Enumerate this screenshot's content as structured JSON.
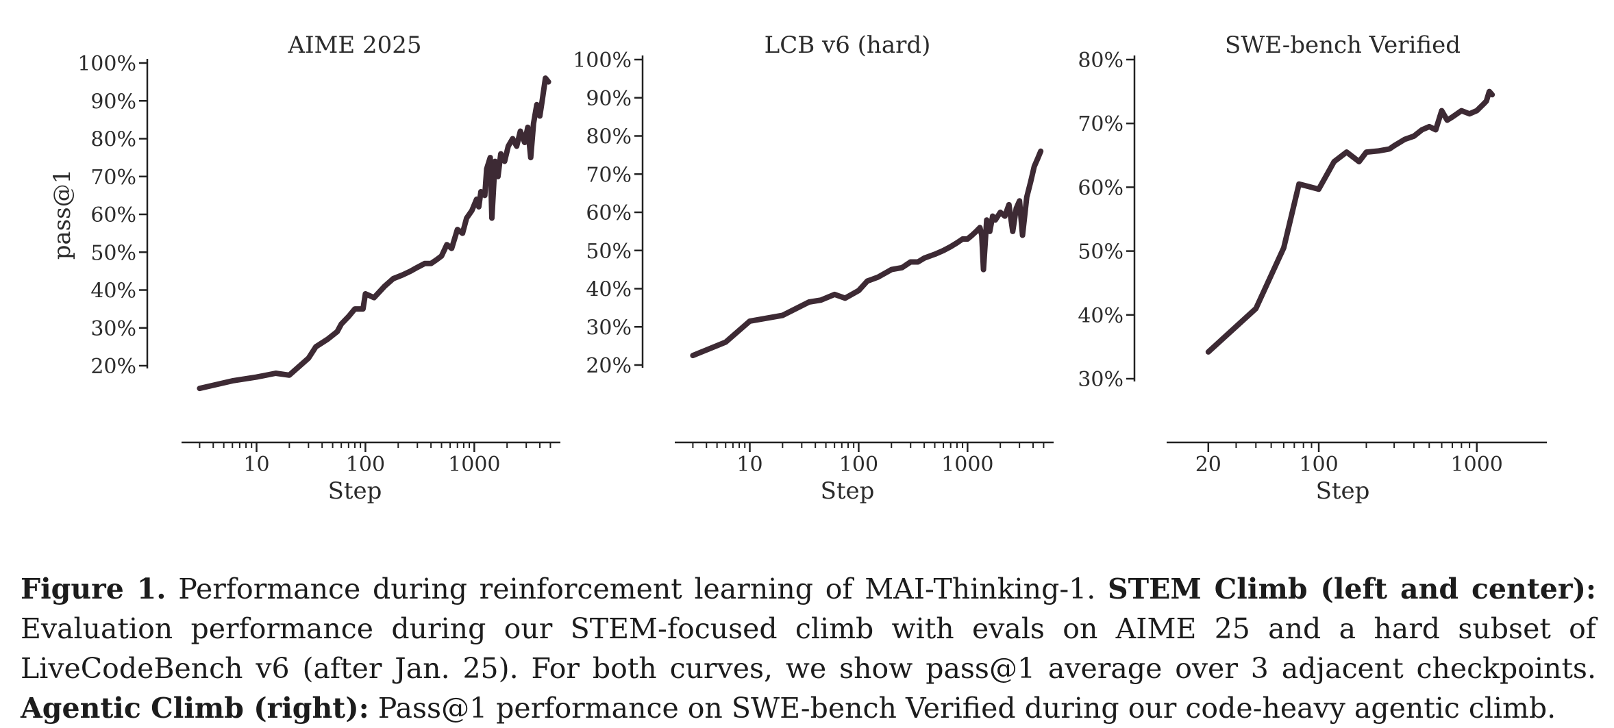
{
  "colors": {
    "line": "#3d2a34",
    "axis": "#222222",
    "text": "#2b2b2b"
  },
  "chart_data": [
    {
      "type": "line",
      "title": "AIME 2025",
      "xlabel": "Step",
      "ylabel": "pass@1",
      "xscale": "log",
      "xlim": [
        2.2,
        5500
      ],
      "ylim": [
        0.115,
        1.0
      ],
      "xticks": [
        10,
        100,
        1000
      ],
      "xtick_labels": [
        "10",
        "100",
        "1000"
      ],
      "yticks": [
        0.2,
        0.3,
        0.4,
        0.5,
        0.6,
        0.7,
        0.8,
        0.9,
        1.0
      ],
      "ytick_labels": [
        "20%",
        "30%",
        "40%",
        "50%",
        "60%",
        "70%",
        "80%",
        "90%",
        "100%"
      ],
      "grid": false,
      "x": [
        3,
        6,
        10,
        15,
        20,
        30,
        35,
        45,
        55,
        60,
        70,
        80,
        95,
        100,
        120,
        150,
        180,
        220,
        260,
        300,
        350,
        400,
        450,
        500,
        560,
        620,
        700,
        780,
        850,
        950,
        1050,
        1100,
        1150,
        1250,
        1300,
        1400,
        1450,
        1550,
        1650,
        1750,
        1900,
        2050,
        2250,
        2450,
        2650,
        2900,
        3100,
        3300,
        3500,
        3750,
        4000,
        4200,
        4500,
        4800
      ],
      "series": [
        {
          "values": [
            0.14,
            0.16,
            0.17,
            0.18,
            0.175,
            0.22,
            0.25,
            0.27,
            0.29,
            0.31,
            0.33,
            0.35,
            0.35,
            0.39,
            0.38,
            0.41,
            0.43,
            0.44,
            0.45,
            0.46,
            0.47,
            0.47,
            0.48,
            0.49,
            0.52,
            0.51,
            0.56,
            0.55,
            0.59,
            0.61,
            0.64,
            0.62,
            0.66,
            0.65,
            0.72,
            0.75,
            0.59,
            0.74,
            0.7,
            0.76,
            0.74,
            0.78,
            0.8,
            0.78,
            0.82,
            0.79,
            0.83,
            0.75,
            0.84,
            0.89,
            0.86,
            0.9,
            0.96,
            0.95
          ]
        }
      ]
    },
    {
      "type": "line",
      "title": "LCB v6 (hard)",
      "xlabel": "Step",
      "ylabel": "",
      "xscale": "log",
      "xlim": [
        2.2,
        5500
      ],
      "ylim": [
        0.2,
        1.0
      ],
      "xticks": [
        10,
        100,
        1000
      ],
      "xtick_labels": [
        "10",
        "100",
        "1000"
      ],
      "yticks": [
        0.2,
        0.3,
        0.4,
        0.5,
        0.6,
        0.7,
        0.8,
        0.9,
        1.0
      ],
      "ytick_labels": [
        "20%",
        "30%",
        "40%",
        "50%",
        "60%",
        "70%",
        "80%",
        "90%",
        "100%"
      ],
      "grid": false,
      "x": [
        3,
        6,
        10,
        20,
        35,
        45,
        60,
        75,
        100,
        120,
        150,
        200,
        250,
        300,
        350,
        400,
        500,
        600,
        700,
        800,
        900,
        1000,
        1100,
        1200,
        1300,
        1350,
        1400,
        1500,
        1600,
        1700,
        1800,
        2000,
        2200,
        2400,
        2600,
        2800,
        3000,
        3200,
        3500,
        3800,
        4100,
        4400,
        4700
      ],
      "series": [
        {
          "values": [
            0.225,
            0.26,
            0.315,
            0.33,
            0.365,
            0.37,
            0.385,
            0.375,
            0.395,
            0.42,
            0.43,
            0.45,
            0.455,
            0.47,
            0.47,
            0.48,
            0.49,
            0.5,
            0.51,
            0.52,
            0.53,
            0.53,
            0.54,
            0.55,
            0.56,
            0.54,
            0.45,
            0.58,
            0.55,
            0.59,
            0.58,
            0.6,
            0.59,
            0.62,
            0.55,
            0.61,
            0.63,
            0.54,
            0.64,
            0.68,
            0.72,
            0.74,
            0.76
          ]
        }
      ]
    },
    {
      "type": "line",
      "title": "SWE-bench Verified",
      "xlabel": "Step",
      "ylabel": "",
      "xscale": "log",
      "xlim": [
        15,
        1900
      ],
      "ylim": [
        0.27,
        0.8
      ],
      "xticks": [
        20,
        100,
        1000
      ],
      "xtick_labels": [
        "20",
        "100",
        "1000"
      ],
      "yticks": [
        0.3,
        0.4,
        0.5,
        0.6,
        0.7,
        0.8
      ],
      "ytick_labels": [
        "30%",
        "40%",
        "50%",
        "60%",
        "70%",
        "80%"
      ],
      "grid": false,
      "x": [
        20,
        40,
        60,
        75,
        100,
        125,
        150,
        180,
        200,
        240,
        280,
        300,
        350,
        400,
        450,
        500,
        550,
        600,
        650,
        700,
        800,
        900,
        1000,
        1100,
        1150,
        1200,
        1250
      ],
      "series": [
        {
          "values": [
            0.342,
            0.41,
            0.505,
            0.605,
            0.597,
            0.64,
            0.655,
            0.64,
            0.655,
            0.657,
            0.66,
            0.665,
            0.675,
            0.68,
            0.69,
            0.695,
            0.69,
            0.72,
            0.705,
            0.71,
            0.72,
            0.715,
            0.72,
            0.73,
            0.735,
            0.75,
            0.745
          ]
        }
      ]
    }
  ],
  "caption": {
    "label": "Figure 1.",
    "text1": " Performance during reinforcement learning of MAI-Thinking-1. ",
    "bold2": "STEM Climb (left and center):",
    "text2": " Evaluation performance during our STEM-focused climb with evals on AIME 25 and a hard subset of LiveCodeBench v6 (after Jan. 25). For both curves, we show pass@1 average over 3 adjacent checkpoints. ",
    "bold3": "Agentic Climb (right):",
    "text3": " Pass@1 performance on SWE-bench Verified during our code-heavy agentic climb."
  }
}
